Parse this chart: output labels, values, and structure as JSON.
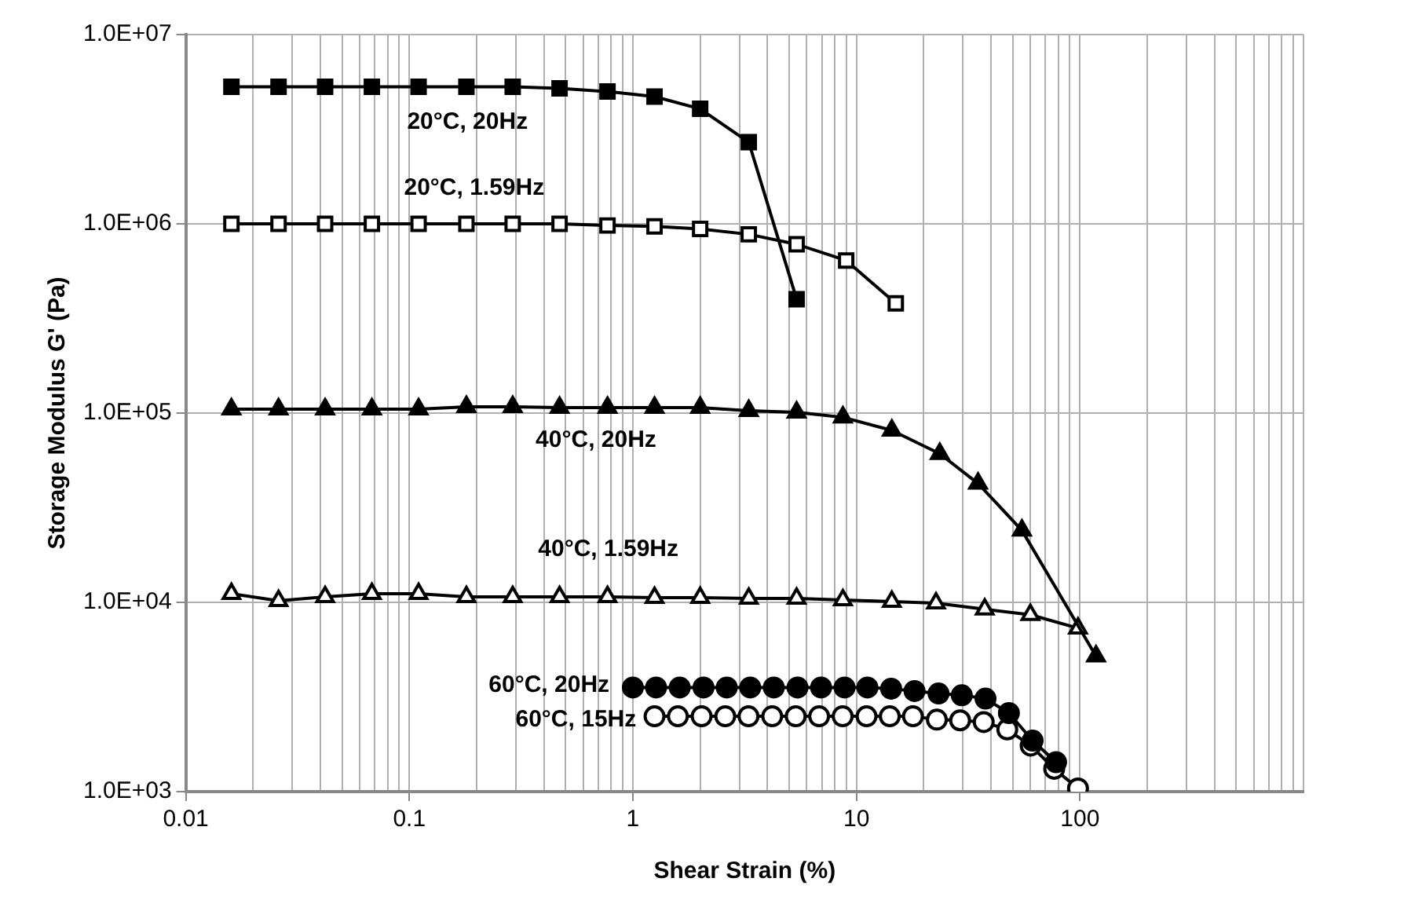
{
  "chart_data": {
    "type": "line",
    "xlabel": "Shear Strain (%)",
    "ylabel": "Storage Modulus G' (Pa)",
    "log": "xy",
    "grid": true,
    "legend": false,
    "line_style": "solid",
    "xlim": [
      0.01,
      1000
    ],
    "ylim": [
      1000,
      10000000
    ],
    "xticks": [
      0.01,
      {
        "value": 0.02,
        "label": null
      },
      {
        "value": 0.03,
        "label": null
      },
      {
        "value": 0.04,
        "label": null
      },
      {
        "value": 0.05,
        "label": null
      },
      {
        "value": 0.06,
        "label": null
      },
      {
        "value": 0.07,
        "label": null
      },
      {
        "value": 0.08,
        "label": null
      },
      {
        "value": 0.09,
        "label": null
      },
      0.1,
      {
        "value": 0.2,
        "label": null
      },
      {
        "value": 0.3,
        "label": null
      },
      {
        "value": 0.4,
        "label": null
      },
      {
        "value": 0.5,
        "label": null
      },
      {
        "value": 0.6,
        "label": null
      },
      {
        "value": 0.7,
        "label": null
      },
      {
        "value": 0.8,
        "label": null
      },
      {
        "value": 0.9,
        "label": null
      },
      1,
      {
        "value": 2,
        "label": null
      },
      {
        "value": 3,
        "label": null
      },
      {
        "value": 4,
        "label": null
      },
      {
        "value": 5,
        "label": null
      },
      {
        "value": 6,
        "label": null
      },
      {
        "value": 7,
        "label": null
      },
      {
        "value": 8,
        "label": null
      },
      {
        "value": 9,
        "label": null
      },
      10,
      {
        "value": 20,
        "label": null
      },
      {
        "value": 30,
        "label": null
      },
      {
        "value": 40,
        "label": null
      },
      {
        "value": 50,
        "label": null
      },
      {
        "value": 60,
        "label": null
      },
      {
        "value": 70,
        "label": null
      },
      {
        "value": 80,
        "label": null
      },
      {
        "value": 90,
        "label": null
      },
      100,
      {
        "value": 200,
        "label": null
      },
      {
        "value": 300,
        "label": null
      },
      {
        "value": 400,
        "label": null
      },
      {
        "value": 500,
        "label": null
      },
      {
        "value": 600,
        "label": null
      },
      {
        "value": 700,
        "label": null
      },
      {
        "value": 800,
        "label": null
      },
      {
        "value": 900,
        "label": null
      },
      {
        "value": 1000,
        "label": null
      }
    ],
    "yticks": [
      {
        "value": 1000,
        "label": "1.0E+03"
      },
      {
        "value": 10000,
        "label": "1.0E+04"
      },
      {
        "value": 100000,
        "label": "1.0E+05"
      },
      {
        "value": 1000000,
        "label": "1.0E+06"
      },
      {
        "value": 10000000,
        "label": "1.0E+07"
      }
    ],
    "series": [
      {
        "name": "20°C, 20Hz",
        "color": "#000000",
        "marker": "square",
        "x": [
          0.016,
          0.026,
          0.042,
          0.068,
          0.11,
          0.18,
          0.29,
          0.47,
          0.77,
          1.25,
          2.0,
          3.3,
          5.4
        ],
        "values": [
          5300000,
          5300000,
          5300000,
          5300000,
          5300000,
          5300000,
          5300000,
          5200000,
          5000000,
          4700000,
          4050000,
          2700000,
          400000
        ]
      },
      {
        "name": "20°C, 1.59Hz",
        "color": "#000000",
        "marker": "square",
        "x": [
          0.016,
          0.026,
          0.042,
          0.068,
          0.11,
          0.18,
          0.29,
          0.47,
          0.77,
          1.25,
          2.0,
          3.3,
          5.4,
          9,
          15
        ],
        "values": [
          1000000,
          1000000,
          1000000,
          1000000,
          1000000,
          1000000,
          1000000,
          1000000,
          980000,
          970000,
          940000,
          880000,
          780000,
          640000,
          380000
        ]
      },
      {
        "name": "40°C, 20Hz",
        "color": "#000000",
        "marker": "triangle",
        "x": [
          0.016,
          0.026,
          0.042,
          0.068,
          0.11,
          0.18,
          0.29,
          0.47,
          0.77,
          1.25,
          2.0,
          3.3,
          5.4,
          8.7,
          14.4,
          23.6,
          35,
          55,
          118
        ],
        "values": [
          105000,
          105000,
          105000,
          105000,
          105000,
          108000,
          108000,
          107000,
          107000,
          107000,
          107000,
          103000,
          101000,
          95000,
          81000,
          61000,
          42500,
          24000,
          5200
        ]
      },
      {
        "name": "40°C, 1.59Hz",
        "color": "#000000",
        "marker": "triangle",
        "x": [
          0.016,
          0.026,
          0.042,
          0.068,
          0.11,
          0.18,
          0.29,
          0.47,
          0.77,
          1.25,
          2.0,
          3.3,
          5.4,
          8.7,
          14.4,
          22.7,
          37.5,
          60,
          98
        ],
        "values": [
          11100,
          10200,
          10700,
          11100,
          11100,
          10700,
          10700,
          10700,
          10700,
          10600,
          10600,
          10500,
          10500,
          10300,
          10100,
          9900,
          9200,
          8600,
          7300
        ]
      },
      {
        "name": "60°C, 20Hz",
        "color": "#000000",
        "marker": "circle",
        "x": [
          1,
          1.27,
          1.62,
          2.07,
          2.63,
          3.35,
          4.27,
          5.45,
          6.95,
          8.85,
          11.2,
          14.3,
          18.2,
          23.3,
          29.6,
          37.8,
          48.1,
          61.4,
          78.2
        ],
        "values": [
          3550,
          3550,
          3550,
          3550,
          3550,
          3550,
          3550,
          3550,
          3550,
          3550,
          3550,
          3500,
          3400,
          3300,
          3230,
          3100,
          2600,
          1860,
          1430
        ]
      },
      {
        "name": "60°C, 15Hz",
        "color": "#000000",
        "marker": "circle",
        "x": [
          1.25,
          1.59,
          2.03,
          2.59,
          3.29,
          4.2,
          5.35,
          6.81,
          8.68,
          11.1,
          14.1,
          17.9,
          22.9,
          29.1,
          37.1,
          47.3,
          60.2,
          76.7,
          98
        ],
        "values": [
          2500,
          2500,
          2500,
          2500,
          2500,
          2500,
          2500,
          2500,
          2500,
          2500,
          2500,
          2500,
          2400,
          2380,
          2330,
          2130,
          1750,
          1320,
          1040
        ]
      }
    ]
  }
}
